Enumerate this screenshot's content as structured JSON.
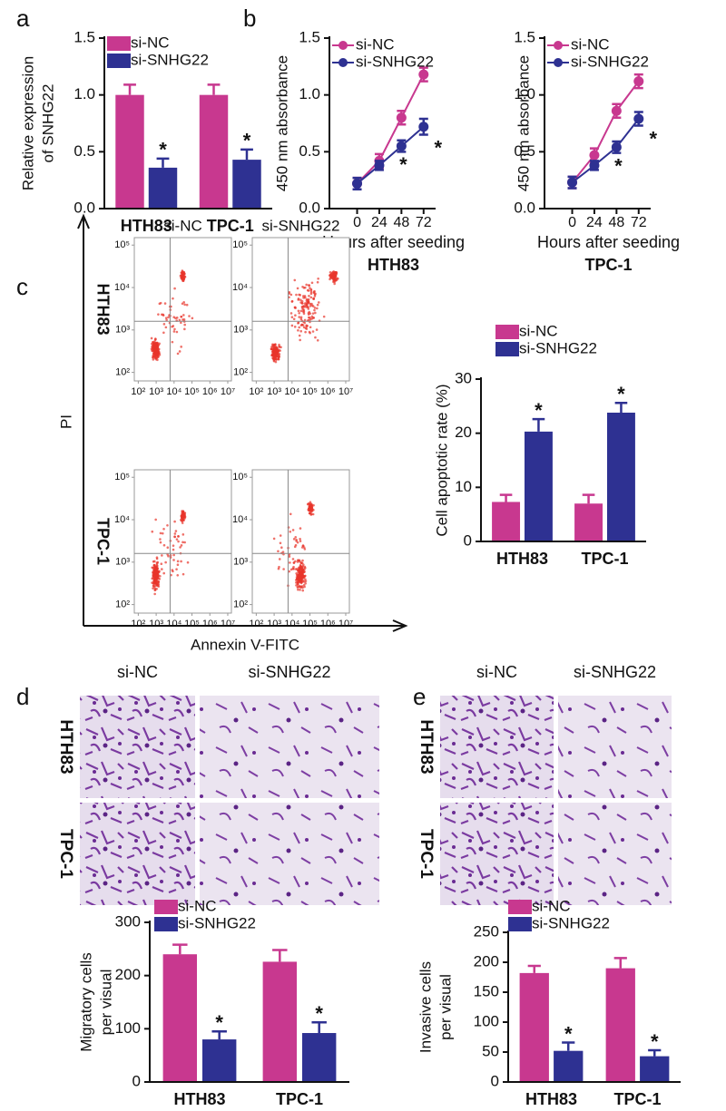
{
  "chart_data": [
    {
      "type": "bar",
      "panel": "a",
      "ylabel": [
        "Relative expression",
        "of SNHG22"
      ],
      "categories": [
        "HTH83",
        "TPC-1"
      ],
      "series": [
        {
          "name": "si-NC",
          "color": "#c8388f",
          "values": [
            1.0,
            1.0
          ],
          "errors": [
            0.09,
            0.09
          ]
        },
        {
          "name": "si-SNHG22",
          "color": "#2e3192",
          "values": [
            0.36,
            0.43
          ],
          "errors": [
            0.08,
            0.09
          ],
          "significance": [
            "*",
            "*"
          ]
        }
      ],
      "ylim": [
        0,
        1.5
      ],
      "yticks": [
        {
          "value": 0,
          "label": "0.0"
        },
        {
          "value": 0.5,
          "label": "0.5"
        },
        {
          "value": 1,
          "label": "1.0"
        },
        {
          "value": 1.5,
          "label": "1.5"
        }
      ],
      "legend": "upper left"
    },
    {
      "type": "line",
      "panel": "b",
      "subtitle": "HTH83",
      "xlabel": "Hours after seeding",
      "ylabel": "450 nm absorbance",
      "x": [
        0,
        24,
        48,
        72
      ],
      "xlim": [
        -30,
        85
      ],
      "xticks": [
        0,
        24,
        48,
        72
      ],
      "series": [
        {
          "name": "si-NC",
          "color": "#c8388f",
          "values": [
            0.22,
            0.42,
            0.8,
            1.18
          ],
          "errors": [
            0.05,
            0.06,
            0.06,
            0.06
          ]
        },
        {
          "name": "si-SNHG22",
          "color": "#2e3192",
          "values": [
            0.22,
            0.38,
            0.55,
            0.72
          ],
          "errors": [
            0.05,
            0.04,
            0.05,
            0.07
          ],
          "significance": [
            null,
            null,
            "*",
            "*"
          ]
        }
      ],
      "ylim": [
        0,
        1.5
      ],
      "yticks": [
        {
          "value": 0,
          "label": "0.0"
        },
        {
          "value": 0.5,
          "label": "0.5"
        },
        {
          "value": 1,
          "label": "1.0"
        },
        {
          "value": 1.5,
          "label": "1.5"
        }
      ],
      "legend": "upper left"
    },
    {
      "type": "line",
      "subtitle": "TPC-1",
      "xlabel": "Hours after seeding",
      "ylabel": "450 nm absorbance",
      "x": [
        0,
        24,
        48,
        72
      ],
      "xlim": [
        -30,
        85
      ],
      "xticks": [
        0,
        24,
        48,
        72
      ],
      "series": [
        {
          "name": "si-NC",
          "color": "#c8388f",
          "values": [
            0.23,
            0.47,
            0.86,
            1.12
          ],
          "errors": [
            0.05,
            0.06,
            0.06,
            0.06
          ]
        },
        {
          "name": "si-SNHG22",
          "color": "#2e3192",
          "values": [
            0.23,
            0.38,
            0.54,
            0.79
          ],
          "errors": [
            0.05,
            0.04,
            0.05,
            0.06
          ],
          "significance": [
            null,
            null,
            "*",
            "*"
          ]
        }
      ],
      "ylim": [
        0,
        1.5
      ],
      "yticks": [
        {
          "value": 0,
          "label": "0.0"
        },
        {
          "value": 0.5,
          "label": "0.5"
        },
        {
          "value": 1,
          "label": "1.0"
        },
        {
          "value": 1.5,
          "label": "1.5"
        }
      ],
      "legend": "upper left"
    },
    {
      "type": "flow",
      "panel": "c",
      "columns": [
        "si-NC",
        "si-SNHG22"
      ],
      "rows": [
        "HTH83",
        "TPC-1"
      ],
      "xlabel": "Annexin V-FITC",
      "ylabel": "PI",
      "log": true,
      "xlim": [
        60,
        16000000
      ],
      "ylim": [
        63,
        150000
      ],
      "xticks": [
        {
          "value": 100,
          "label": "10²"
        },
        {
          "value": 1000,
          "label": "10³"
        },
        {
          "value": 10000,
          "label": "10⁴"
        },
        {
          "value": 100000,
          "label": "10⁵"
        },
        {
          "value": 1000000,
          "label": "10⁶"
        },
        {
          "value": 10000000,
          "label": "10⁷"
        }
      ],
      "yticks": [
        {
          "value": 100,
          "label": "10²"
        },
        {
          "value": 1000,
          "label": "10³"
        },
        {
          "value": 10000,
          "label": "10⁴"
        },
        {
          "value": 100000,
          "label": "10⁵"
        }
      ],
      "gates": {
        "x": 6000,
        "y": 1600
      }
    },
    {
      "type": "bar",
      "ylabel": "Cell apoptotic rate (%)",
      "categories": [
        "HTH83",
        "TPC-1"
      ],
      "series": [
        {
          "name": "si-NC",
          "color": "#c8388f",
          "values": [
            7.3,
            7.0
          ],
          "errors": [
            1.3,
            1.6
          ]
        },
        {
          "name": "si-SNHG22",
          "color": "#2e3192",
          "values": [
            20.3,
            23.8
          ],
          "errors": [
            2.3,
            1.8
          ],
          "significance": [
            "*",
            "*"
          ]
        }
      ],
      "ylim": [
        0,
        30
      ],
      "yticks": [
        0,
        10,
        20,
        30
      ],
      "legend": "upper left"
    },
    {
      "type": "image",
      "panel": "d",
      "columns": [
        "si-NC",
        "si-SNHG22"
      ],
      "rows": [
        "HTH83",
        "TPC-1"
      ]
    },
    {
      "type": "bar",
      "ylabel": [
        "Migratory cells",
        "per visual"
      ],
      "categories": [
        "HTH83",
        "TPC-1"
      ],
      "series": [
        {
          "name": "si-NC",
          "color": "#c8388f",
          "values": [
            240,
            226
          ],
          "errors": [
            18,
            22
          ]
        },
        {
          "name": "si-SNHG22",
          "color": "#2e3192",
          "values": [
            80,
            92
          ],
          "errors": [
            15,
            20
          ],
          "significance": [
            "*",
            "*"
          ]
        }
      ],
      "ylim": [
        0,
        300
      ],
      "yticks": [
        0,
        100,
        200,
        300
      ],
      "legend": "upper left"
    },
    {
      "type": "image",
      "panel": "e",
      "columns": [
        "si-NC",
        "si-SNHG22"
      ],
      "rows": [
        "HTH83",
        "TPC-1"
      ]
    },
    {
      "type": "bar",
      "ylabel": [
        "Invasive cells",
        "per visual"
      ],
      "categories": [
        "HTH83",
        "TPC-1"
      ],
      "series": [
        {
          "name": "si-NC",
          "color": "#c8388f",
          "values": [
            182,
            190
          ],
          "errors": [
            12,
            17
          ]
        },
        {
          "name": "si-SNHG22",
          "color": "#2e3192",
          "values": [
            52,
            43
          ],
          "errors": [
            14,
            10
          ],
          "significance": [
            "*",
            "*"
          ]
        }
      ],
      "ylim": [
        0,
        250
      ],
      "yticks": [
        0,
        50,
        100,
        150,
        200,
        250
      ],
      "legend": "upper left"
    }
  ]
}
